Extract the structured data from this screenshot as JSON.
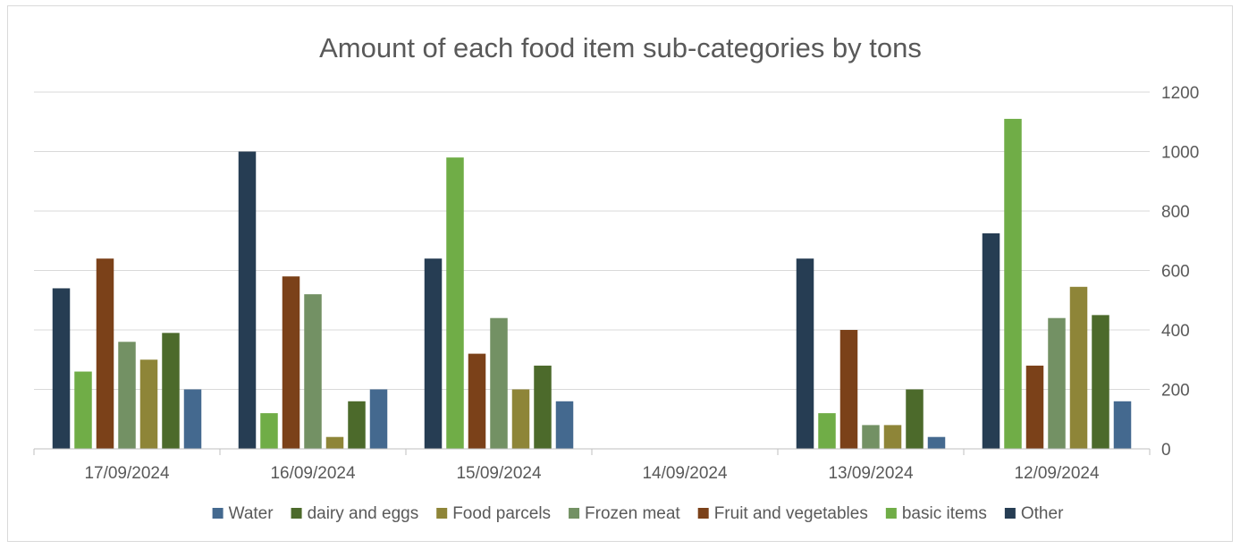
{
  "chart_data": {
    "type": "bar",
    "title": "Amount of each food item sub-categories by tons",
    "categories": [
      "17/09/2024",
      "16/09/2024",
      "15/09/2024",
      "14/09/2024",
      "13/09/2024",
      "12/09/2024"
    ],
    "ylim": [
      0,
      1200
    ],
    "yticks": [
      0,
      200,
      400,
      600,
      800,
      1000,
      1200
    ],
    "y_axis_position": "right",
    "grid": true,
    "legend_position": "bottom",
    "series_draw_order": [
      "Other",
      "basic items",
      "Fruit and vegetables",
      "Frozen meat",
      "Food parcels",
      "dairy and eggs",
      "Water"
    ],
    "series": [
      {
        "name": "Water",
        "color": "#44698f",
        "values": [
          200,
          200,
          160,
          0,
          40,
          160
        ]
      },
      {
        "name": "dairy and eggs",
        "color": "#4c6a2b",
        "values": [
          390,
          160,
          280,
          0,
          200,
          450
        ]
      },
      {
        "name": "Food parcels",
        "color": "#8e8538",
        "values": [
          300,
          40,
          200,
          0,
          80,
          545
        ]
      },
      {
        "name": "Frozen meat",
        "color": "#739164",
        "values": [
          360,
          520,
          440,
          0,
          80,
          440
        ]
      },
      {
        "name": "Fruit and vegetables",
        "color": "#7b4119",
        "values": [
          640,
          580,
          320,
          0,
          400,
          280
        ]
      },
      {
        "name": "basic items",
        "color": "#70ad47",
        "values": [
          260,
          120,
          980,
          0,
          120,
          1110
        ]
      },
      {
        "name": "Other",
        "color": "#263d53",
        "values": [
          540,
          1000,
          640,
          0,
          640,
          725
        ]
      }
    ]
  }
}
